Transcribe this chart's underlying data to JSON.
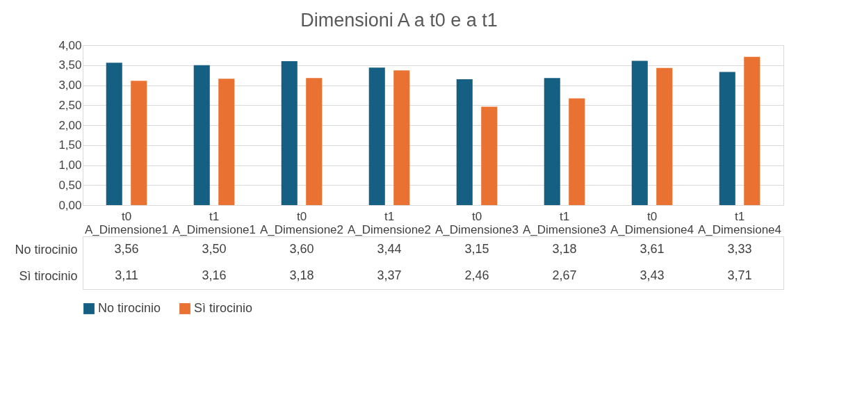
{
  "chart_data": {
    "type": "bar",
    "title": "Dimensioni A a t0 e a t1",
    "categories": [
      "t0 A_Dimensione1",
      "t1 A_Dimensione1",
      "t0 A_Dimensione2",
      "t1 A_Dimensione2",
      "t0 A_Dimensione3",
      "t1 A_Dimensione3",
      "t0 A_Dimensione4",
      "t1 A_Dimensione4"
    ],
    "series": [
      {
        "name": "No tirocinio",
        "color": "#156082",
        "values": [
          3.56,
          3.5,
          3.6,
          3.44,
          3.15,
          3.18,
          3.61,
          3.33
        ],
        "value_labels": [
          "3,56",
          "3,50",
          "3,60",
          "3,44",
          "3,15",
          "3,18",
          "3,61",
          "3,33"
        ]
      },
      {
        "name": "Sì tirocinio",
        "color": "#e97132",
        "values": [
          3.11,
          3.16,
          3.18,
          3.37,
          2.46,
          2.67,
          3.43,
          3.71
        ],
        "value_labels": [
          "3,11",
          "3,16",
          "3,18",
          "3,37",
          "2,46",
          "2,67",
          "3,43",
          "3,71"
        ]
      }
    ],
    "ylim": [
      0,
      4
    ],
    "yticks": [
      {
        "value": 0,
        "label": "0,00"
      },
      {
        "value": 0.5,
        "label": "0,50"
      },
      {
        "value": 1,
        "label": "1,00"
      },
      {
        "value": 1.5,
        "label": "1,50"
      },
      {
        "value": 2,
        "label": "2,00"
      },
      {
        "value": 2.5,
        "label": "2,50"
      },
      {
        "value": 3,
        "label": "3,00"
      },
      {
        "value": 3.5,
        "label": "3,50"
      },
      {
        "value": 4,
        "label": "4,00"
      }
    ],
    "grid": "y",
    "legend": "bottom"
  }
}
